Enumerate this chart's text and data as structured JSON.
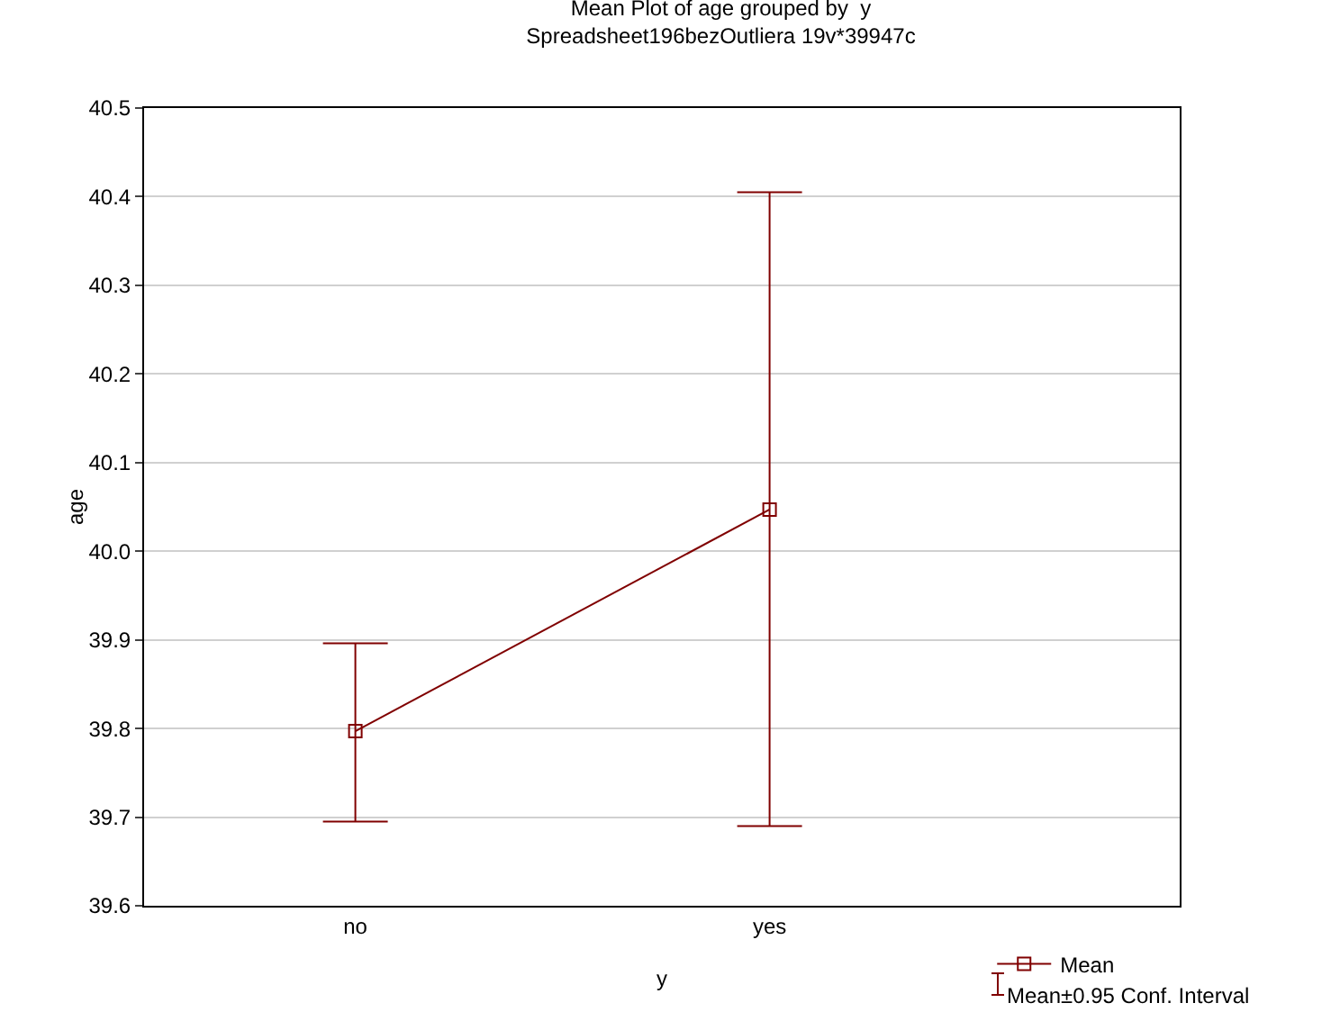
{
  "chart_data": {
    "type": "line",
    "title": "Mean Plot of age grouped by  y",
    "subtitle": "Spreadsheet196bezOutliera 19v*39947c",
    "xlabel": "y",
    "ylabel": "age",
    "categories": [
      "no",
      "yes"
    ],
    "series": [
      {
        "name": "Mean",
        "color": "#800000",
        "values": [
          39.797,
          40.047
        ],
        "errors": [
          [
            39.695,
            39.896
          ],
          [
            39.69,
            40.405
          ]
        ]
      }
    ],
    "ylim": [
      39.6,
      40.5
    ],
    "yticks": [
      {
        "value": 39.6,
        "label": "39.6"
      },
      {
        "value": 39.7,
        "label": "39.7"
      },
      {
        "value": 39.8,
        "label": "39.8"
      },
      {
        "value": 39.9,
        "label": "39.9"
      },
      {
        "value": 40,
        "label": "40.0"
      },
      {
        "value": 40.1,
        "label": "40.1"
      },
      {
        "value": 40.2,
        "label": "40.2"
      },
      {
        "value": 40.3,
        "label": "40.3"
      },
      {
        "value": 40.4,
        "label": "40.4"
      },
      {
        "value": 40.5,
        "label": "40.5"
      }
    ],
    "grid": "y",
    "legend": "bottom right",
    "marker": "square",
    "line_style": "solid",
    "annotations": [
      "Mean±0.95 Conf. Interval"
    ]
  }
}
